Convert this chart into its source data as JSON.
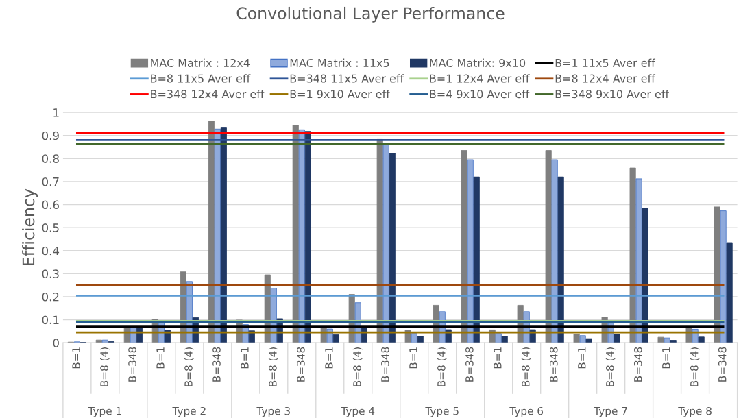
{
  "chart_data": {
    "type": "bar",
    "title": "Convolutional Layer Performance",
    "ylabel": "Efficiency",
    "categories": [
      "B=1",
      "B=8 (4)",
      "B=348",
      "B=1",
      "B=8 (4)",
      "B=348",
      "B=1",
      "B=8 (4)",
      "B=348",
      "B=1",
      "B=8 (4)",
      "B=348",
      "B=1",
      "B=8 (4)",
      "B=348",
      "B=1",
      "B=8 (4)",
      "B=348",
      "B=1",
      "B=8 (4)",
      "B=348",
      "B=1",
      "B=8 (4)",
      "B=348"
    ],
    "annotations": [
      "Type 1",
      "Type 2",
      "Type 3",
      "Type 4",
      "Type 5",
      "Type 6",
      "Type 7",
      "Type 8"
    ],
    "series": [
      {
        "name": "MAC Matrix : 12x4",
        "color": "#7f7f7f",
        "values": [
          0.003,
          0.012,
          0.068,
          0.102,
          0.308,
          0.963,
          0.099,
          0.295,
          0.945,
          0.07,
          0.21,
          0.883,
          0.055,
          0.163,
          0.835,
          0.056,
          0.163,
          0.835,
          0.037,
          0.111,
          0.759,
          0.024,
          0.068,
          0.59
        ]
      },
      {
        "name": "MAC Matrix : 11x5",
        "color": "#8faadc",
        "values": [
          0.004,
          0.012,
          0.068,
          0.09,
          0.266,
          0.928,
          0.079,
          0.237,
          0.925,
          0.06,
          0.174,
          0.86,
          0.04,
          0.135,
          0.795,
          0.04,
          0.135,
          0.795,
          0.031,
          0.085,
          0.712,
          0.021,
          0.059,
          0.573
        ]
      },
      {
        "name": "MAC Matrix: 9x10",
        "color": "#203864",
        "values": [
          0.002,
          0.005,
          0.068,
          0.055,
          0.11,
          0.933,
          0.052,
          0.105,
          0.918,
          0.035,
          0.07,
          0.822,
          0.028,
          0.057,
          0.72,
          0.028,
          0.057,
          0.72,
          0.018,
          0.037,
          0.585,
          0.011,
          0.025,
          0.435
        ]
      },
      {
        "name": "B=1 11x5 Aver eff",
        "type": "line",
        "color": "#000000",
        "values": [
          0.07,
          0.07,
          0.07,
          0.07,
          0.07,
          0.07,
          0.07,
          0.07,
          0.07,
          0.07,
          0.07,
          0.07,
          0.07,
          0.07,
          0.07,
          0.07,
          0.07,
          0.07,
          0.07,
          0.07,
          0.07,
          0.07,
          0.07,
          0.07
        ]
      },
      {
        "name": "B=8 11x5 Aver eff",
        "type": "line",
        "color": "#5b9bd5",
        "values": [
          0.205,
          0.205,
          0.205,
          0.205,
          0.205,
          0.205,
          0.205,
          0.205,
          0.205,
          0.205,
          0.205,
          0.205,
          0.205,
          0.205,
          0.205,
          0.205,
          0.205,
          0.205,
          0.205,
          0.205,
          0.205,
          0.205,
          0.205,
          0.205
        ]
      },
      {
        "name": "B=348 11x5 Aver eff",
        "type": "line",
        "color": "#2f5597",
        "values": [
          0.88,
          0.88,
          0.88,
          0.88,
          0.88,
          0.88,
          0.88,
          0.88,
          0.88,
          0.88,
          0.88,
          0.88,
          0.88,
          0.88,
          0.88,
          0.88,
          0.88,
          0.88,
          0.88,
          0.88,
          0.88,
          0.88,
          0.88,
          0.88
        ]
      },
      {
        "name": "B=1 12x4 Aver eff",
        "type": "line",
        "color": "#a9d18e",
        "values": [
          0.095,
          0.095,
          0.095,
          0.095,
          0.095,
          0.095,
          0.095,
          0.095,
          0.095,
          0.095,
          0.095,
          0.095,
          0.095,
          0.095,
          0.095,
          0.095,
          0.095,
          0.095,
          0.095,
          0.095,
          0.095,
          0.095,
          0.095,
          0.095
        ]
      },
      {
        "name": "B=8 12x4 Aver eff",
        "type": "line",
        "color": "#9e480e",
        "values": [
          0.25,
          0.25,
          0.25,
          0.25,
          0.25,
          0.25,
          0.25,
          0.25,
          0.25,
          0.25,
          0.25,
          0.25,
          0.25,
          0.25,
          0.25,
          0.25,
          0.25,
          0.25,
          0.25,
          0.25,
          0.25,
          0.25,
          0.25,
          0.25
        ]
      },
      {
        "name": "B=348 12x4 Aver eff",
        "type": "line",
        "color": "#ff0000",
        "values": [
          0.91,
          0.91,
          0.91,
          0.91,
          0.91,
          0.91,
          0.91,
          0.91,
          0.91,
          0.91,
          0.91,
          0.91,
          0.91,
          0.91,
          0.91,
          0.91,
          0.91,
          0.91,
          0.91,
          0.91,
          0.91,
          0.91,
          0.91,
          0.91
        ]
      },
      {
        "name": "B=1 9x10 Aver eff",
        "type": "line",
        "color": "#997300",
        "values": [
          0.045,
          0.045,
          0.045,
          0.045,
          0.045,
          0.045,
          0.045,
          0.045,
          0.045,
          0.045,
          0.045,
          0.045,
          0.045,
          0.045,
          0.045,
          0.045,
          0.045,
          0.045,
          0.045,
          0.045,
          0.045,
          0.045,
          0.045,
          0.045
        ]
      },
      {
        "name": "B=4 9x10 Aver eff",
        "type": "line",
        "color": "#255e91",
        "values": [
          0.09,
          0.09,
          0.09,
          0.09,
          0.09,
          0.09,
          0.09,
          0.09,
          0.09,
          0.09,
          0.09,
          0.09,
          0.09,
          0.09,
          0.09,
          0.09,
          0.09,
          0.09,
          0.09,
          0.09,
          0.09,
          0.09,
          0.09,
          0.09
        ]
      },
      {
        "name": "B=348 9x10 Aver eff",
        "type": "line",
        "color": "#43682b",
        "values": [
          0.862,
          0.862,
          0.862,
          0.862,
          0.862,
          0.862,
          0.862,
          0.862,
          0.862,
          0.862,
          0.862,
          0.862,
          0.862,
          0.862,
          0.862,
          0.862,
          0.862,
          0.862,
          0.862,
          0.862,
          0.862,
          0.862,
          0.862,
          0.862
        ]
      }
    ],
    "ylim": [
      0,
      1
    ],
    "yticks": [
      0,
      0.1,
      0.2,
      0.3,
      0.4,
      0.5,
      0.6,
      0.7,
      0.8,
      0.9,
      1
    ],
    "grid": "y",
    "legend": "top"
  }
}
